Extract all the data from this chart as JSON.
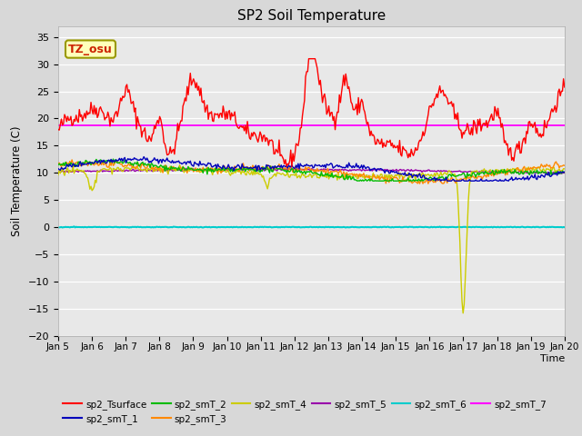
{
  "title": "SP2 Soil Temperature",
  "xlabel": "Time",
  "ylabel": "Soil Temperature (C)",
  "ylim": [
    -20,
    37
  ],
  "yticks": [
    -20,
    -15,
    -10,
    -5,
    0,
    5,
    10,
    15,
    20,
    25,
    30,
    35
  ],
  "x_labels": [
    "Jan 5",
    "Jan 6",
    "Jan 7",
    "Jan 8",
    "Jan 9",
    "Jan 10",
    "Jan 11",
    "Jan 12",
    "Jan 13",
    "Jan 14",
    "Jan 15",
    "Jan 16",
    "Jan 17",
    "Jan 18",
    "Jan 19",
    "Jan 20"
  ],
  "tz_label": "TZ_osu",
  "fig_bg": "#d8d8d8",
  "plot_bg": "#e8e8e8",
  "colors": {
    "sp2_Tsurface": "#ff0000",
    "sp2_smT_1": "#0000bb",
    "sp2_smT_2": "#00bb00",
    "sp2_smT_3": "#ff8800",
    "sp2_smT_4": "#cccc00",
    "sp2_smT_5": "#9900aa",
    "sp2_smT_6": "#00cccc",
    "sp2_smT_7": "#ff00ff"
  }
}
